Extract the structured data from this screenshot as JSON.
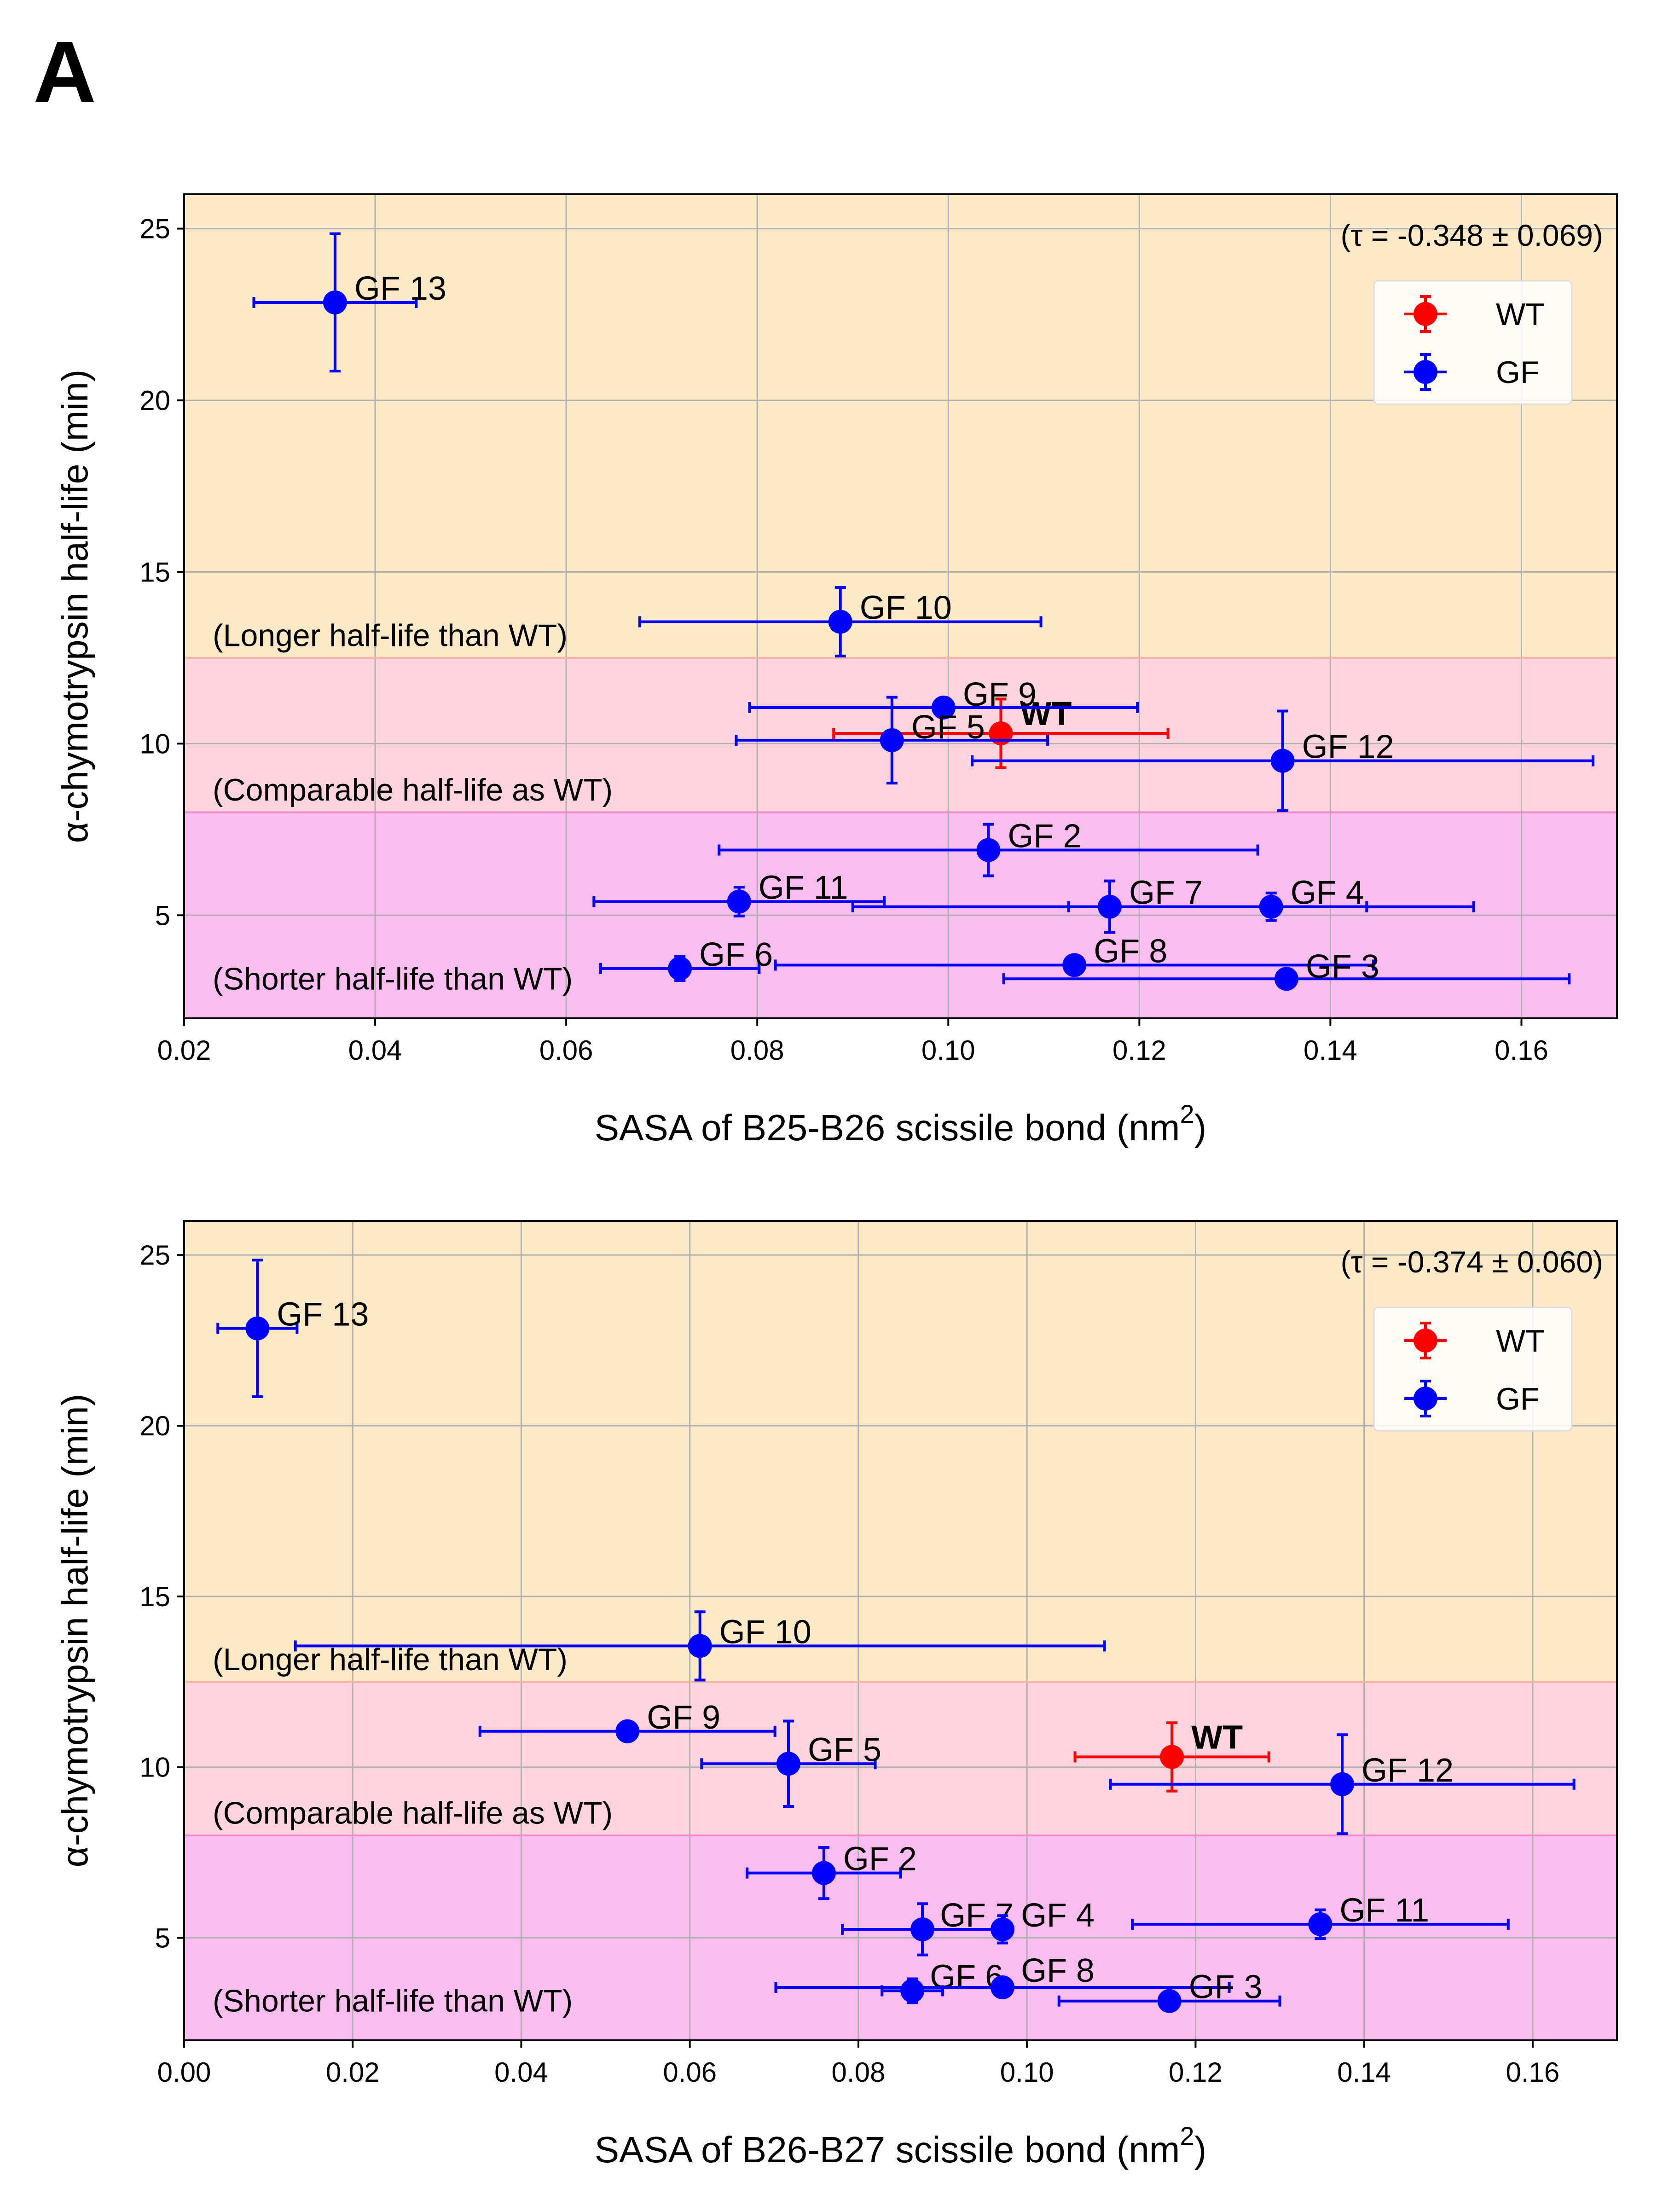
{
  "panel_label": "A",
  "colors": {
    "wt": "#ff0000",
    "gf": "#0000ff",
    "region_longer": "#fde8c8",
    "region_comparable": "#fdd4de",
    "region_shorter": "#fbbcf0",
    "grid": "#b0b0b0",
    "boundary_upper": "#f5b7a0",
    "boundary_lower": "#f08ac8"
  },
  "chart_data": [
    {
      "type": "scatter",
      "xlabel": "SASA of B25-B26 scissile bond (nm",
      "xlabel_sup": "2",
      "xlabel_end": ")",
      "ylabel": "α-chymotrypsin half-life (min)",
      "xlim": [
        0.02,
        0.17
      ],
      "ylim": [
        2,
        26
      ],
      "xticks": [
        0.02,
        0.04,
        0.06,
        0.08,
        0.1,
        0.12,
        0.14,
        0.16
      ],
      "xtick_labels": [
        "0.02",
        "0.04",
        "0.06",
        "0.08",
        "0.10",
        "0.12",
        "0.14",
        "0.16"
      ],
      "yticks": [
        5,
        10,
        15,
        20,
        25
      ],
      "ytick_labels": [
        "5",
        "10",
        "15",
        "20",
        "25"
      ],
      "grid": true,
      "annotation": "(τ = -0.348 ± 0.069)",
      "legend": {
        "position": "upper right",
        "entries": [
          "WT",
          "GF"
        ]
      },
      "regions": [
        {
          "label": "(Longer half-life than WT)",
          "y_from": 12.5,
          "y_to": 26,
          "label_y": 12.6
        },
        {
          "label": "(Comparable half-life as WT)",
          "y_from": 8,
          "y_to": 12.5,
          "label_y": 8.1
        },
        {
          "label": "(Shorter half-life than WT)",
          "y_from": 2,
          "y_to": 8,
          "label_y": 2.6
        }
      ],
      "series": [
        {
          "name": "WT",
          "points": [
            {
              "label": "WT",
              "x": 0.1055,
              "y": 10.3,
              "xerr": 0.0175,
              "yerr": 1.0
            }
          ]
        },
        {
          "name": "GF",
          "points": [
            {
              "label": "GF 13",
              "x": 0.0358,
              "y": 22.85,
              "xerr": 0.0085,
              "yerr": 2.0
            },
            {
              "label": "GF 10",
              "x": 0.0887,
              "y": 13.55,
              "xerr": 0.021,
              "yerr": 1.0
            },
            {
              "label": "GF 9",
              "x": 0.0995,
              "y": 11.05,
              "xerr": 0.0203,
              "yerr": 0
            },
            {
              "label": "GF 5",
              "x": 0.0941,
              "y": 10.1,
              "xerr": 0.0163,
              "yerr": 1.25
            },
            {
              "label": "GF 12",
              "x": 0.135,
              "y": 9.5,
              "xerr": 0.0325,
              "yerr": 1.45
            },
            {
              "label": "GF 2",
              "x": 0.1042,
              "y": 6.9,
              "xerr": 0.0282,
              "yerr": 0.75
            },
            {
              "label": "GF 11",
              "x": 0.0781,
              "y": 5.4,
              "xerr": 0.0152,
              "yerr": 0.42
            },
            {
              "label": "GF 7",
              "x": 0.1169,
              "y": 5.25,
              "xerr": 0.0269,
              "yerr": 0.75
            },
            {
              "label": "GF 4",
              "x": 0.1338,
              "y": 5.25,
              "xerr": 0.0212,
              "yerr": 0.4
            },
            {
              "label": "GF 6",
              "x": 0.0719,
              "y": 3.45,
              "xerr": 0.0083,
              "yerr": 0.35
            },
            {
              "label": "GF 8",
              "x": 0.1132,
              "y": 3.55,
              "xerr": 0.0313,
              "yerr": 0
            },
            {
              "label": "GF 3",
              "x": 0.1354,
              "y": 3.15,
              "xerr": 0.0296,
              "yerr": 0
            }
          ]
        }
      ]
    },
    {
      "type": "scatter",
      "xlabel": "SASA of B26-B27 scissile bond (nm",
      "xlabel_sup": "2",
      "xlabel_end": ")",
      "ylabel": "α-chymotrypsin half-life (min)",
      "xlim": [
        0.0,
        0.17
      ],
      "ylim": [
        2,
        26
      ],
      "xticks": [
        0.0,
        0.02,
        0.04,
        0.06,
        0.08,
        0.1,
        0.12,
        0.14,
        0.16
      ],
      "xtick_labels": [
        "0.00",
        "0.02",
        "0.04",
        "0.06",
        "0.08",
        "0.10",
        "0.12",
        "0.14",
        "0.16"
      ],
      "yticks": [
        5,
        10,
        15,
        20,
        25
      ],
      "ytick_labels": [
        "5",
        "10",
        "15",
        "20",
        "25"
      ],
      "grid": true,
      "annotation": "(τ = -0.374 ± 0.060)",
      "legend": {
        "position": "upper right",
        "entries": [
          "WT",
          "GF"
        ]
      },
      "regions": [
        {
          "label": "(Longer half-life than WT)",
          "y_from": 12.5,
          "y_to": 26,
          "label_y": 12.6
        },
        {
          "label": "(Comparable half-life as WT)",
          "y_from": 8,
          "y_to": 12.5,
          "label_y": 8.1
        },
        {
          "label": "(Shorter half-life than WT)",
          "y_from": 2,
          "y_to": 8,
          "label_y": 2.6
        }
      ],
      "series": [
        {
          "name": "WT",
          "points": [
            {
              "label": "WT",
              "x": 0.1172,
              "y": 10.3,
              "xerr": 0.0115,
              "yerr": 1.0
            }
          ]
        },
        {
          "name": "GF",
          "points": [
            {
              "label": "GF 13",
              "x": 0.0087,
              "y": 22.85,
              "xerr": 0.0047,
              "yerr": 2.0
            },
            {
              "label": "GF 10",
              "x": 0.0612,
              "y": 13.55,
              "xerr": 0.048,
              "yerr": 1.0
            },
            {
              "label": "GF 9",
              "x": 0.0526,
              "y": 11.05,
              "xerr": 0.0175,
              "yerr": 0
            },
            {
              "label": "GF 5",
              "x": 0.0717,
              "y": 10.1,
              "xerr": 0.0103,
              "yerr": 1.25
            },
            {
              "label": "GF 12",
              "x": 0.1374,
              "y": 9.5,
              "xerr": 0.0275,
              "yerr": 1.45
            },
            {
              "label": "GF 2",
              "x": 0.0759,
              "y": 6.9,
              "xerr": 0.0091,
              "yerr": 0.75
            },
            {
              "label": "GF 7",
              "x": 0.0876,
              "y": 5.25,
              "xerr": 0.0095,
              "yerr": 0.75
            },
            {
              "label": "GF 4",
              "x": 0.0971,
              "y": 5.25,
              "xerr": 0,
              "yerr": 0.4
            },
            {
              "label": "GF 11",
              "x": 0.1348,
              "y": 5.4,
              "xerr": 0.0223,
              "yerr": 0.42
            },
            {
              "label": "GF 6",
              "x": 0.0864,
              "y": 3.45,
              "xerr": 0.0036,
              "yerr": 0.35
            },
            {
              "label": "GF 8",
              "x": 0.0971,
              "y": 3.55,
              "xerr": 0.0269,
              "yerr": 0
            },
            {
              "label": "GF 3",
              "x": 0.1169,
              "y": 3.15,
              "xerr": 0.0131,
              "yerr": 0
            }
          ]
        }
      ]
    }
  ]
}
